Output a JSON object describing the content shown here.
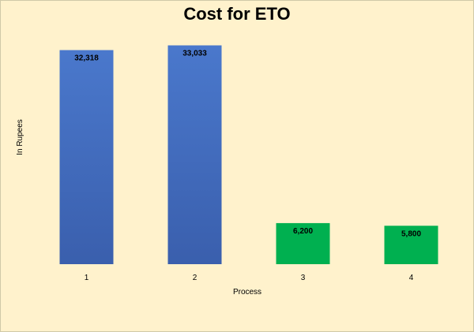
{
  "chart_data": {
    "type": "bar",
    "title": "Cost for ETO",
    "xlabel": "Process",
    "ylabel": "In Rupees",
    "categories": [
      "1",
      "2",
      "3",
      "4"
    ],
    "values": [
      32318,
      33033,
      6200,
      5800
    ],
    "value_labels": [
      "32,318",
      "33,033",
      "6,200",
      "5,800"
    ],
    "bar_colors": [
      "#4472c4",
      "#4472c4",
      "#00b050",
      "#00b050"
    ],
    "ylim": [
      0,
      35000
    ],
    "grid": false,
    "legend": "none",
    "background": "#fff2cc"
  }
}
